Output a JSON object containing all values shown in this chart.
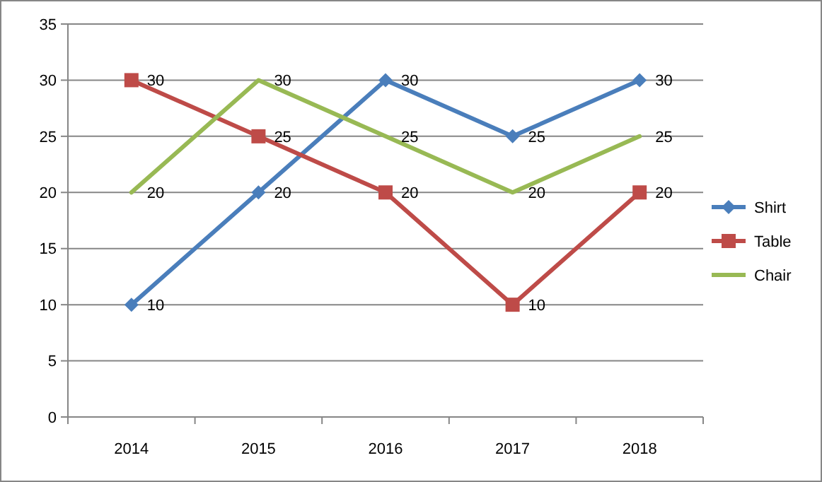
{
  "chart_data": {
    "type": "line",
    "categories": [
      "2014",
      "2015",
      "2016",
      "2017",
      "2018"
    ],
    "series": [
      {
        "name": "Shirt",
        "color": "#4a7ebb",
        "marker": "diamond",
        "values": [
          10,
          20,
          30,
          25,
          30
        ]
      },
      {
        "name": "Table",
        "color": "#be4b48",
        "marker": "square",
        "values": [
          30,
          25,
          20,
          10,
          20
        ]
      },
      {
        "name": "Chair",
        "color": "#98b954",
        "marker": "none",
        "values": [
          20,
          30,
          25,
          20,
          25
        ]
      }
    ],
    "ylim": [
      0,
      35
    ],
    "yticks": [
      0,
      5,
      10,
      15,
      20,
      25,
      30,
      35
    ],
    "grid": "y",
    "legend": "right",
    "data_labels": true
  }
}
